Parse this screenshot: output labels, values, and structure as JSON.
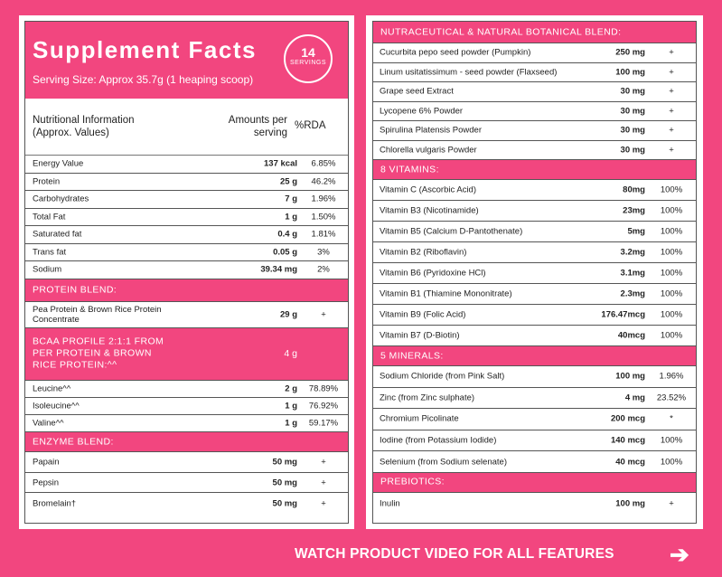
{
  "left": {
    "title": "Supplement Facts",
    "serving": "Serving Size: Approx 35.7g (1 heaping scoop)",
    "badge_num": "14",
    "badge_label": "SERVINGS",
    "col_info_1": "Nutritional Information",
    "col_info_2": "(Approx. Values)",
    "col_amt_1": "Amounts per",
    "col_amt_2": "serving",
    "col_rda": "%RDA",
    "nutrition": [
      {
        "name": "Energy Value",
        "amount": "137 kcal",
        "rda": "6.85%"
      },
      {
        "name": "Protein",
        "amount": "25 g",
        "rda": "46.2%"
      },
      {
        "name": "Carbohydrates",
        "amount": "7 g",
        "rda": "1.96%"
      },
      {
        "name": "Total Fat",
        "amount": "1 g",
        "rda": "1.50%"
      },
      {
        "name": "Saturated fat",
        "amount": "0.4 g",
        "rda": "1.81%"
      },
      {
        "name": "Trans fat",
        "amount": "0.05 g",
        "rda": "3%"
      },
      {
        "name": "Sodium",
        "amount": "39.34 mg",
        "rda": "2%"
      }
    ],
    "protein_blend_label": "PROTEIN BLEND:",
    "protein_blend_item": {
      "name_1": "Pea Protein & Brown Rice Protein",
      "name_2": "Concentrate",
      "amount": "29 g",
      "rda": "+"
    },
    "bcaa_label_1": "BCAA PROFILE 2:1:1 FROM",
    "bcaa_label_2": "PER PROTEIN & BROWN",
    "bcaa_label_3": "RICE PROTEIN:^^",
    "bcaa_amount": "4 g",
    "bcaa": [
      {
        "name": "Leucine^^",
        "amount": "2 g",
        "rda": "78.89%"
      },
      {
        "name": "Isoleucine^^",
        "amount": "1 g",
        "rda": "76.92%"
      },
      {
        "name": "Valine^^",
        "amount": "1 g",
        "rda": "59.17%"
      }
    ],
    "enzyme_label": "ENZYME BLEND:",
    "enzymes": [
      {
        "name": "Papain",
        "amount": "50 mg",
        "rda": "+"
      },
      {
        "name": "Pepsin",
        "amount": "50 mg",
        "rda": "+"
      },
      {
        "name": "Bromelain†",
        "amount": "50 mg",
        "rda": "+"
      }
    ]
  },
  "right": {
    "botanical_label": "NUTRACEUTICAL & NATURAL BOTANICAL BLEND:",
    "botanical": [
      {
        "name": "Cucurbita pepo seed powder (Pumpkin)",
        "amount": "250 mg",
        "rda": "+"
      },
      {
        "name": "Linum usitatissimum - seed powder (Flaxseed)",
        "amount": "100 mg",
        "rda": "+"
      },
      {
        "name": "Grape seed Extract",
        "amount": "30 mg",
        "rda": "+"
      },
      {
        "name": "Lycopene 6% Powder",
        "amount": "30 mg",
        "rda": "+"
      },
      {
        "name": "Spirulina Platensis Powder",
        "amount": "30 mg",
        "rda": "+"
      },
      {
        "name": "Chlorella vulgaris Powder",
        "amount": "30 mg",
        "rda": "+"
      }
    ],
    "vitamins_label": "8 VITAMINS:",
    "vitamins": [
      {
        "name": "Vitamin C (Ascorbic Acid)",
        "amount": "80mg",
        "rda": "100%"
      },
      {
        "name": "Vitamin B3 (Nicotinamide)",
        "amount": "23mg",
        "rda": "100%"
      },
      {
        "name": "Vitamin B5 (Calcium D-Pantothenate)",
        "amount": "5mg",
        "rda": "100%"
      },
      {
        "name": "Vitamin B2 (Riboflavin)",
        "amount": "3.2mg",
        "rda": "100%"
      },
      {
        "name": "Vitamin B6 (Pyridoxine HCl)",
        "amount": "3.1mg",
        "rda": "100%"
      },
      {
        "name": "Vitamin B1 (Thiamine Mononitrate)",
        "amount": "2.3mg",
        "rda": "100%"
      },
      {
        "name": "Vitamin B9 (Folic Acid)",
        "amount": "176.47mcg",
        "rda": "100%"
      },
      {
        "name": "Vitamin B7 (D-Biotin)",
        "amount": "40mcg",
        "rda": "100%"
      }
    ],
    "minerals_label": "5 MINERALS:",
    "minerals": [
      {
        "name": "Sodium Chloride (from Pink Salt)",
        "amount": "100 mg",
        "rda": "1.96%"
      },
      {
        "name": "Zinc (from Zinc sulphate)",
        "amount": "4 mg",
        "rda": "23.52%"
      },
      {
        "name": "Chromium Picolinate",
        "amount": "200 mcg",
        "rda": "*"
      },
      {
        "name": "Iodine (from Potassium Iodide)",
        "amount": "140 mcg",
        "rda": "100%"
      },
      {
        "name": "Selenium (from Sodium selenate)",
        "amount": "40 mcg",
        "rda": "100%"
      }
    ],
    "prebiotics_label": "PREBIOTICS:",
    "prebiotics": [
      {
        "name": "Inulin",
        "amount": "100 mg",
        "rda": "+"
      }
    ]
  },
  "footer": {
    "text": "WATCH PRODUCT VIDEO FOR ALL FEATURES",
    "arrow": "➔"
  },
  "colors": {
    "accent": "#f2467f",
    "text": "#222222"
  }
}
